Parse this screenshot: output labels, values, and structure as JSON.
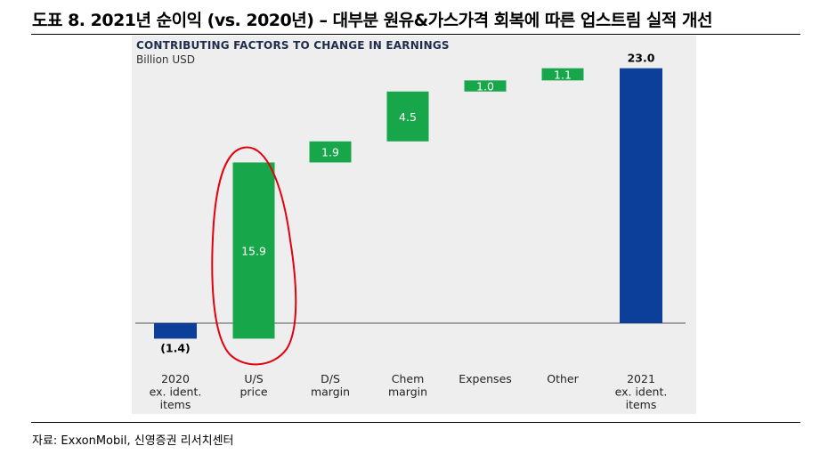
{
  "page": {
    "figure_title": "도표 8. 2021년 순이익 (vs. 2020년) – 대부분 원유&가스가격 회복에 따른 업스트림 실적 개선",
    "source": "자료: ExxonMobil, 신영증권 리서치센터"
  },
  "colors": {
    "total_bar": "#0b3f99",
    "increase_bar": "#18a64a",
    "panel_bg": "#eeeeee",
    "annotation": "#e3000f"
  },
  "chart_data": {
    "type": "bar",
    "subtype": "waterfall",
    "title": "CONTRIBUTING FACTORS TO CHANGE IN EARNINGS",
    "unit": "Billion USD",
    "categories": [
      [
        "2020",
        "ex. ident.",
        "items"
      ],
      [
        "U/S",
        "price"
      ],
      [
        "D/S",
        "margin"
      ],
      [
        "Chem",
        "margin"
      ],
      [
        "Expenses"
      ],
      [
        "Other"
      ],
      [
        "2021",
        "ex. ident.",
        "items"
      ]
    ],
    "values": [
      -1.4,
      15.9,
      1.9,
      4.5,
      1.0,
      1.1,
      23.0
    ],
    "bar_kinds": [
      "total",
      "delta",
      "delta",
      "delta",
      "delta",
      "delta",
      "total"
    ],
    "value_labels": [
      "(1.4)",
      "15.9",
      "1.9",
      "4.5",
      "1.0",
      "1.1",
      "23.0"
    ],
    "ylim": [
      -2.5,
      26.0
    ],
    "grid": false,
    "legend": "none",
    "annotation": "red hand-drawn circle around U/S price bar"
  }
}
